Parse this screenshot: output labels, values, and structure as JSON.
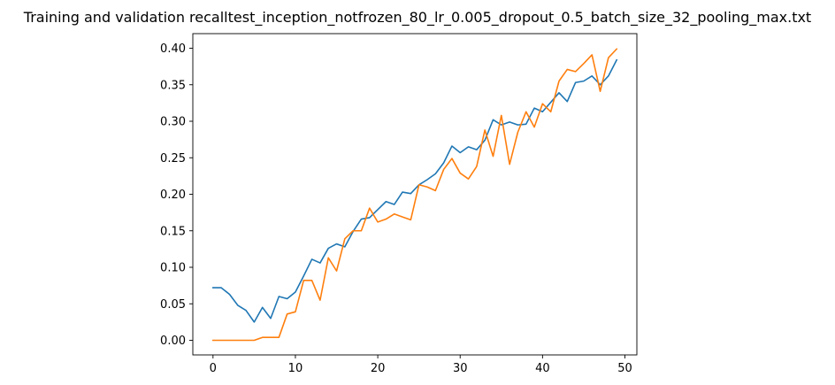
{
  "chart_data": {
    "type": "line",
    "title": "Training and validation recalltest_inception_notfrozen_80_lr_0.005_dropout_0.5_batch_size_32_pooling_max.txt",
    "xlabel": "",
    "ylabel": "",
    "xlim": [
      -2.45,
      51.45
    ],
    "ylim": [
      -0.02,
      0.42
    ],
    "xticks": [
      0,
      10,
      20,
      30,
      40,
      50
    ],
    "yticks": [
      0.0,
      0.05,
      0.1,
      0.15,
      0.2,
      0.25,
      0.3,
      0.35,
      0.4
    ],
    "grid": false,
    "legend": "none",
    "x": [
      0,
      1,
      2,
      3,
      4,
      5,
      6,
      7,
      8,
      9,
      10,
      11,
      12,
      13,
      14,
      15,
      16,
      17,
      18,
      19,
      20,
      21,
      22,
      23,
      24,
      25,
      26,
      27,
      28,
      29,
      30,
      31,
      32,
      33,
      34,
      35,
      36,
      37,
      38,
      39,
      40,
      41,
      42,
      43,
      44,
      45,
      46,
      47,
      48,
      49
    ],
    "series": [
      {
        "color": "#1f77b4",
        "values": [
          0.072,
          0.072,
          0.063,
          0.048,
          0.041,
          0.025,
          0.045,
          0.03,
          0.06,
          0.057,
          0.066,
          0.088,
          0.111,
          0.106,
          0.126,
          0.132,
          0.128,
          0.149,
          0.166,
          0.168,
          0.179,
          0.19,
          0.186,
          0.203,
          0.201,
          0.213,
          0.22,
          0.228,
          0.243,
          0.266,
          0.257,
          0.265,
          0.261,
          0.274,
          0.302,
          0.295,
          0.299,
          0.295,
          0.296,
          0.318,
          0.313,
          0.326,
          0.339,
          0.327,
          0.353,
          0.355,
          0.362,
          0.35,
          0.362,
          0.384
        ]
      },
      {
        "color": "#ff7f0e",
        "values": [
          0.0,
          0.0,
          0.0,
          0.0,
          0.0,
          0.0,
          0.004,
          0.004,
          0.004,
          0.036,
          0.039,
          0.082,
          0.082,
          0.055,
          0.113,
          0.095,
          0.139,
          0.15,
          0.15,
          0.181,
          0.162,
          0.166,
          0.173,
          0.169,
          0.165,
          0.213,
          0.21,
          0.205,
          0.234,
          0.249,
          0.229,
          0.221,
          0.238,
          0.288,
          0.252,
          0.308,
          0.241,
          0.285,
          0.313,
          0.292,
          0.324,
          0.313,
          0.355,
          0.371,
          0.368,
          0.379,
          0.391,
          0.341,
          0.387,
          0.399
        ]
      }
    ]
  }
}
